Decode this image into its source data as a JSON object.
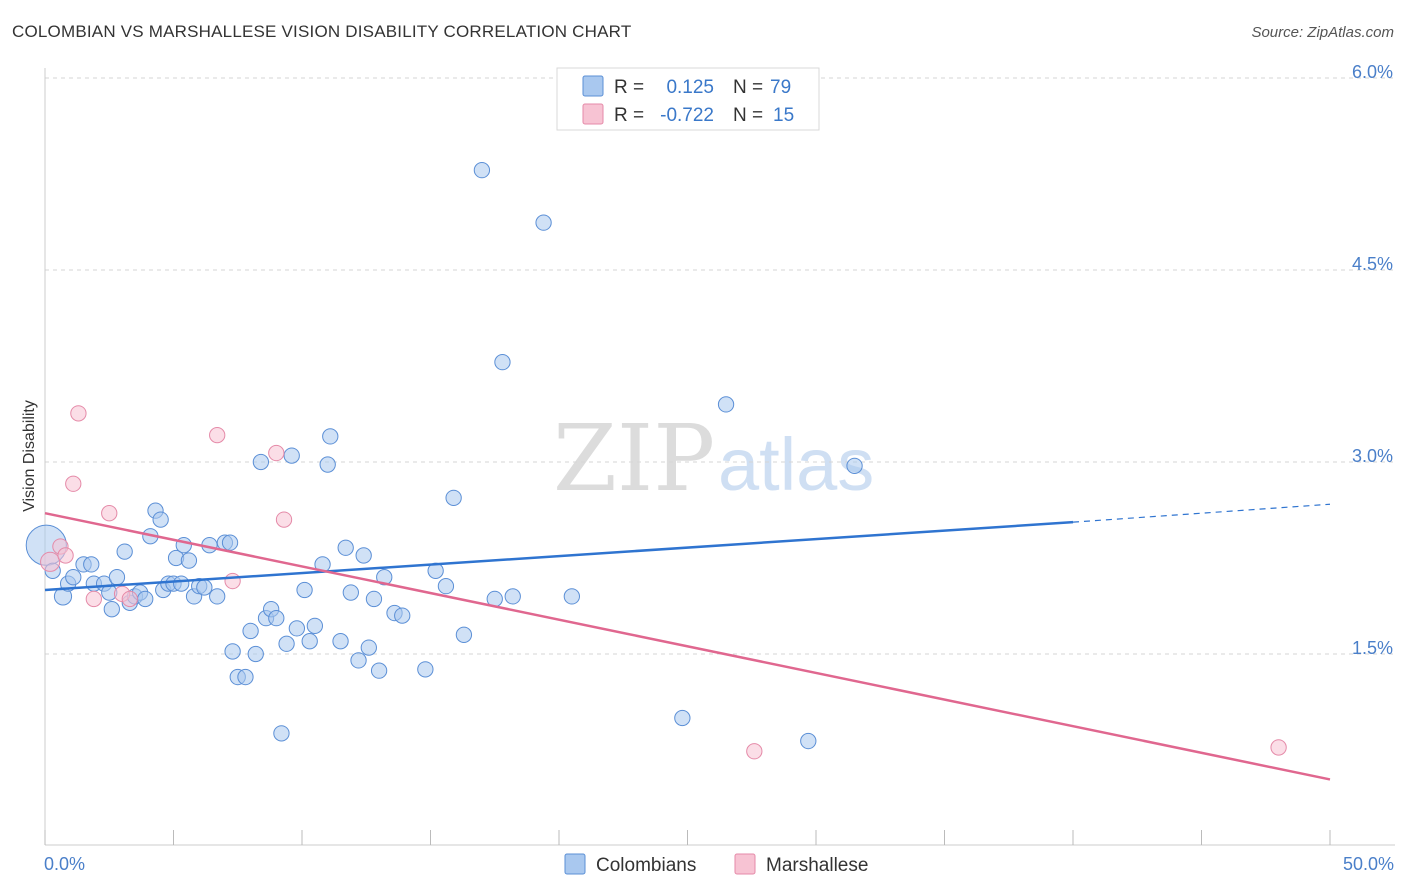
{
  "title": "COLOMBIAN VS MARSHALLESE VISION DISABILITY CORRELATION CHART",
  "source": "Source: ZipAtlas.com",
  "watermark": {
    "zip": "ZIP",
    "atlas": "atlas"
  },
  "colors": {
    "colombians_fill": "#a9c8ef",
    "colombians_stroke": "#5b8fd6",
    "colombians_line": "#2f74d0",
    "marshallese_fill": "#f7c3d3",
    "marshallese_stroke": "#e58aa8",
    "marshallese_line": "#e0678f",
    "tick_text": "#4a7fc9",
    "grid": "#d6d6d6"
  },
  "legend": {
    "rows": [
      {
        "r_label": "R =",
        "r_value": "0.125",
        "n_label": "N =",
        "n_value": "79"
      },
      {
        "r_label": "R =",
        "r_value": "-0.722",
        "n_label": "N =",
        "n_value": "15"
      }
    ]
  },
  "bottom_legend": {
    "colombians": "Colombians",
    "marshallese": "Marshallese"
  },
  "chart_data": {
    "type": "scatter",
    "title": "COLOMBIAN VS MARSHALLESE VISION DISABILITY CORRELATION CHART",
    "xlabel": "",
    "ylabel": "Vision Disability",
    "xlim": [
      0,
      50
    ],
    "ylim": [
      0,
      6.2
    ],
    "x_tick_labels": [
      "0.0%",
      "50.0%"
    ],
    "y_ticks": [
      1.5,
      3.0,
      4.5,
      6.0
    ],
    "y_tick_labels": [
      "1.5%",
      "3.0%",
      "4.5%",
      "6.0%"
    ],
    "series": [
      {
        "name": "Colombians",
        "r": 0.125,
        "n": 79,
        "trend": {
          "x0": 0,
          "y0": 2.0,
          "x1": 40,
          "y1": 2.53,
          "dashed_to_x": 50,
          "dashed_to_y": 2.67
        },
        "points": [
          [
            0.05,
            2.35,
            2.1
          ],
          [
            0.3,
            2.15,
            0.8
          ],
          [
            0.7,
            1.95,
            0.9
          ],
          [
            0.9,
            2.05,
            0.8
          ],
          [
            1.1,
            2.1,
            0.8
          ],
          [
            1.5,
            2.2,
            0.8
          ],
          [
            1.8,
            2.2,
            0.8
          ],
          [
            1.9,
            2.05,
            0.8
          ],
          [
            2.3,
            2.05,
            0.8
          ],
          [
            2.5,
            1.98,
            0.8
          ],
          [
            2.6,
            1.85,
            0.8
          ],
          [
            2.8,
            2.1,
            0.8
          ],
          [
            3.1,
            2.3,
            0.8
          ],
          [
            3.3,
            1.9,
            0.8
          ],
          [
            3.5,
            1.95,
            0.8
          ],
          [
            3.7,
            1.98,
            0.8
          ],
          [
            3.9,
            1.93,
            0.8
          ],
          [
            4.1,
            2.42,
            0.8
          ],
          [
            4.3,
            2.62,
            0.8
          ],
          [
            4.5,
            2.55,
            0.8
          ],
          [
            4.6,
            2.0,
            0.8
          ],
          [
            4.8,
            2.05,
            0.8
          ],
          [
            5.0,
            2.05,
            0.8
          ],
          [
            5.1,
            2.25,
            0.8
          ],
          [
            5.3,
            2.05,
            0.8
          ],
          [
            5.4,
            2.35,
            0.8
          ],
          [
            5.6,
            2.23,
            0.8
          ],
          [
            5.8,
            1.95,
            0.8
          ],
          [
            6.0,
            2.03,
            0.8
          ],
          [
            6.2,
            2.02,
            0.8
          ],
          [
            6.4,
            2.35,
            0.8
          ],
          [
            6.7,
            1.95,
            0.8
          ],
          [
            7.0,
            2.37,
            0.8
          ],
          [
            7.2,
            2.37,
            0.8
          ],
          [
            7.3,
            1.52,
            0.8
          ],
          [
            7.5,
            1.32,
            0.8
          ],
          [
            7.8,
            1.32,
            0.8
          ],
          [
            8.0,
            1.68,
            0.8
          ],
          [
            8.2,
            1.5,
            0.8
          ],
          [
            8.4,
            3.0,
            0.8
          ],
          [
            8.6,
            1.78,
            0.8
          ],
          [
            8.8,
            1.85,
            0.8
          ],
          [
            9.0,
            1.78,
            0.8
          ],
          [
            9.2,
            0.88,
            0.8
          ],
          [
            9.4,
            1.58,
            0.8
          ],
          [
            9.6,
            3.05,
            0.8
          ],
          [
            9.8,
            1.7,
            0.8
          ],
          [
            10.1,
            2.0,
            0.8
          ],
          [
            10.3,
            1.6,
            0.8
          ],
          [
            10.5,
            1.72,
            0.8
          ],
          [
            10.8,
            2.2,
            0.8
          ],
          [
            11.0,
            2.98,
            0.8
          ],
          [
            11.1,
            3.2,
            0.8
          ],
          [
            11.5,
            1.6,
            0.8
          ],
          [
            11.7,
            2.33,
            0.8
          ],
          [
            11.9,
            1.98,
            0.8
          ],
          [
            12.2,
            1.45,
            0.8
          ],
          [
            12.4,
            2.27,
            0.8
          ],
          [
            12.6,
            1.55,
            0.8
          ],
          [
            12.8,
            1.93,
            0.8
          ],
          [
            13.0,
            1.37,
            0.8
          ],
          [
            13.2,
            2.1,
            0.8
          ],
          [
            13.6,
            1.82,
            0.8
          ],
          [
            13.9,
            1.8,
            0.8
          ],
          [
            14.8,
            1.38,
            0.8
          ],
          [
            15.2,
            2.15,
            0.8
          ],
          [
            15.6,
            2.03,
            0.8
          ],
          [
            15.9,
            2.72,
            0.8
          ],
          [
            16.3,
            1.65,
            0.8
          ],
          [
            17.0,
            5.28,
            0.8
          ],
          [
            17.5,
            1.93,
            0.8
          ],
          [
            17.8,
            3.78,
            0.8
          ],
          [
            18.2,
            1.95,
            0.8
          ],
          [
            19.4,
            4.87,
            0.8
          ],
          [
            20.5,
            1.95,
            0.8
          ],
          [
            24.8,
            1.0,
            0.8
          ],
          [
            26.5,
            3.45,
            0.8
          ],
          [
            29.7,
            0.82,
            0.8
          ],
          [
            31.5,
            2.97,
            0.8
          ]
        ]
      },
      {
        "name": "Marshallese",
        "r": -0.722,
        "n": 15,
        "trend": {
          "x0": 0,
          "y0": 2.6,
          "x1": 50,
          "y1": 0.52
        },
        "points": [
          [
            0.2,
            2.22,
            1.0
          ],
          [
            0.6,
            2.34,
            0.8
          ],
          [
            0.8,
            2.27,
            0.8
          ],
          [
            1.1,
            2.83,
            0.8
          ],
          [
            1.3,
            3.38,
            0.8
          ],
          [
            1.9,
            1.93,
            0.8
          ],
          [
            2.5,
            2.6,
            0.8
          ],
          [
            3.0,
            1.97,
            0.8
          ],
          [
            3.3,
            1.93,
            0.8
          ],
          [
            6.7,
            3.21,
            0.8
          ],
          [
            7.3,
            2.07,
            0.8
          ],
          [
            9.0,
            3.07,
            0.8
          ],
          [
            9.3,
            2.55,
            0.8
          ],
          [
            27.6,
            0.74,
            0.8
          ],
          [
            48.0,
            0.77,
            0.8
          ]
        ]
      }
    ]
  }
}
